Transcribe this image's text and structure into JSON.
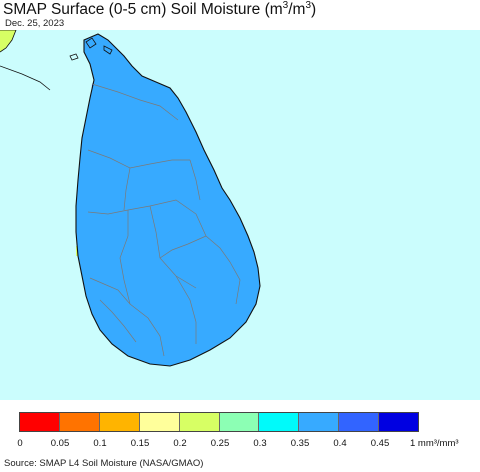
{
  "title_main": "SMAP Surface (0-5 cm) Soil Moisture (m",
  "title_sup1": "3",
  "title_mid": "/m",
  "title_sup2": "3",
  "title_end": ")",
  "date": "Dec. 25, 2023",
  "legend": {
    "colors": [
      "#ff0000",
      "#ff7300",
      "#ffb400",
      "#ffff9b",
      "#d7ff64",
      "#8cffb4",
      "#00fafa",
      "#37aaff",
      "#3264ff",
      "#0000e1"
    ],
    "ticks": [
      "0",
      "0.05",
      "0.1",
      "0.15",
      "0.2",
      "0.25",
      "0.3",
      "0.35",
      "0.4",
      "0.45",
      "1 mm³/mm³"
    ]
  },
  "source": "Source: SMAP L4 Soil Moisture (NASA/GMAO)",
  "map_colors": {
    "ocean": "#cbfdfd",
    "land_main": "#37aaff",
    "land_wet": "#3264ff",
    "land_wettest": "#0000e1",
    "land_mid": "#00fafa",
    "land_low": "#8cffb4",
    "land_dry": "#d7ff64",
    "boundary": "#7a7a7a",
    "coast": "#111111"
  }
}
